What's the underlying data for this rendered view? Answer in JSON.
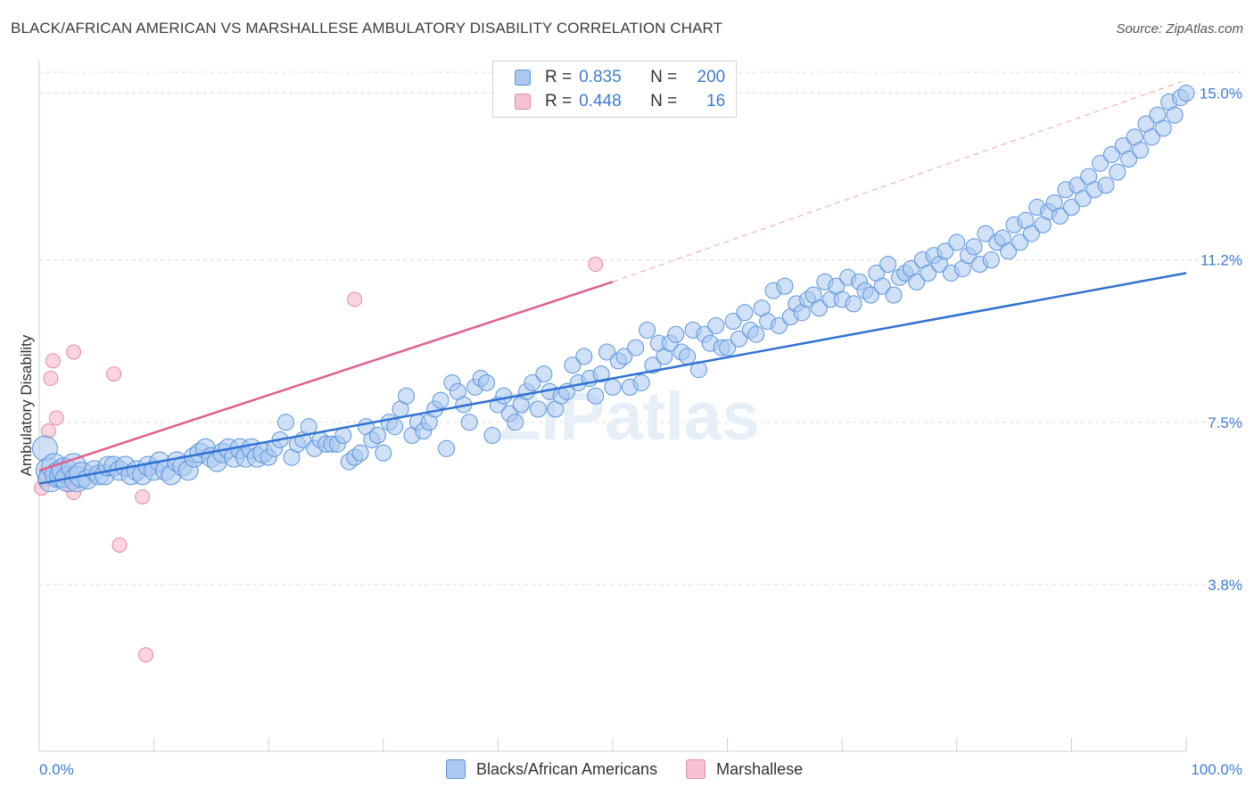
{
  "title": "BLACK/AFRICAN AMERICAN VS MARSHALLESE AMBULATORY DISABILITY CORRELATION CHART",
  "source": "Source: ZipAtlas.com",
  "watermark": "ZIPatlas",
  "legend": {
    "rows": [
      {
        "r_label": "R =",
        "r_value": "0.835",
        "n_label": "N =",
        "n_value": "200"
      },
      {
        "r_label": "R =",
        "r_value": "0.448",
        "n_label": "N =",
        "n_value": "16"
      }
    ]
  },
  "bottom_legend": [
    "Blacks/African Americans",
    "Marshallese"
  ],
  "colors": {
    "blue_fill": "#aac8f0",
    "blue_stroke": "#5b93dc",
    "blue_line": "#2f72d2",
    "pink_fill": "#f8c2d2",
    "pink_stroke": "#e58aa6",
    "pink_line": "#e0608a",
    "grid": "#dddddd",
    "axis_text": "#3d7bd6"
  },
  "chart_data": {
    "type": "scatter",
    "title": "BLACK/AFRICAN AMERICAN VS MARSHALLESE AMBULATORY DISABILITY CORRELATION CHART",
    "xlabel": "",
    "ylabel": "Ambulatory Disability",
    "xlim": [
      0,
      100
    ],
    "ylim": [
      0,
      15.6
    ],
    "x_tick_labels": [
      "0.0%",
      "100.0%"
    ],
    "y_ticks": [
      3.8,
      7.5,
      11.2,
      15.0
    ],
    "y_tick_labels": [
      "3.8%",
      "7.5%",
      "11.2%",
      "15.0%"
    ],
    "grid": true,
    "legend_position": "top-center",
    "series": [
      {
        "name": "Blacks/African Americans",
        "r": 0.835,
        "n": 200,
        "trend": {
          "x": [
            0,
            100
          ],
          "y": [
            6.1,
            10.9
          ]
        },
        "points": [
          [
            0.5,
            6.9
          ],
          [
            0.8,
            6.4
          ],
          [
            1,
            6.2
          ],
          [
            1.3,
            6.5
          ],
          [
            1.6,
            6.3
          ],
          [
            2,
            6.3
          ],
          [
            2.2,
            6.4
          ],
          [
            2.5,
            6.2
          ],
          [
            3,
            6.5
          ],
          [
            3.3,
            6.2
          ],
          [
            3.7,
            6.3
          ],
          [
            4.2,
            6.2
          ],
          [
            4.8,
            6.4
          ],
          [
            5.2,
            6.3
          ],
          [
            5.7,
            6.3
          ],
          [
            6,
            6.5
          ],
          [
            6.5,
            6.5
          ],
          [
            7,
            6.4
          ],
          [
            7.5,
            6.5
          ],
          [
            8,
            6.3
          ],
          [
            8.5,
            6.4
          ],
          [
            9,
            6.3
          ],
          [
            9.5,
            6.5
          ],
          [
            10,
            6.4
          ],
          [
            10.5,
            6.6
          ],
          [
            11,
            6.4
          ],
          [
            11.5,
            6.3
          ],
          [
            12,
            6.6
          ],
          [
            12.5,
            6.5
          ],
          [
            13,
            6.4
          ],
          [
            13.5,
            6.7
          ],
          [
            14,
            6.8
          ],
          [
            14.5,
            6.9
          ],
          [
            15,
            6.7
          ],
          [
            15.5,
            6.6
          ],
          [
            16,
            6.8
          ],
          [
            16.5,
            6.9
          ],
          [
            17,
            6.7
          ],
          [
            17.5,
            6.9
          ],
          [
            18,
            6.7
          ],
          [
            18.5,
            6.9
          ],
          [
            19,
            6.7
          ],
          [
            19.5,
            6.8
          ],
          [
            20,
            6.7
          ],
          [
            20.5,
            6.9
          ],
          [
            21,
            7.1
          ],
          [
            21.5,
            7.5
          ],
          [
            22,
            6.7
          ],
          [
            22.5,
            7.0
          ],
          [
            23,
            7.1
          ],
          [
            23.5,
            7.4
          ],
          [
            24,
            6.9
          ],
          [
            24.5,
            7.1
          ],
          [
            25,
            7.0
          ],
          [
            25.5,
            7.0
          ],
          [
            26,
            7.0
          ],
          [
            26.5,
            7.2
          ],
          [
            27,
            6.6
          ],
          [
            27.5,
            6.7
          ],
          [
            28,
            6.8
          ],
          [
            28.5,
            7.4
          ],
          [
            29,
            7.1
          ],
          [
            29.5,
            7.2
          ],
          [
            30,
            6.8
          ],
          [
            30.5,
            7.5
          ],
          [
            31,
            7.4
          ],
          [
            31.5,
            7.8
          ],
          [
            32,
            8.1
          ],
          [
            32.5,
            7.2
          ],
          [
            33,
            7.5
          ],
          [
            33.5,
            7.3
          ],
          [
            34,
            7.5
          ],
          [
            34.5,
            7.8
          ],
          [
            35,
            8.0
          ],
          [
            35.5,
            6.9
          ],
          [
            36,
            8.4
          ],
          [
            36.5,
            8.2
          ],
          [
            37,
            7.9
          ],
          [
            37.5,
            7.5
          ],
          [
            38,
            8.3
          ],
          [
            38.5,
            8.5
          ],
          [
            39,
            8.4
          ],
          [
            39.5,
            7.2
          ],
          [
            40,
            7.9
          ],
          [
            40.5,
            8.1
          ],
          [
            41,
            7.7
          ],
          [
            41.5,
            7.5
          ],
          [
            42,
            7.9
          ],
          [
            42.5,
            8.2
          ],
          [
            43,
            8.4
          ],
          [
            43.5,
            7.8
          ],
          [
            44,
            8.6
          ],
          [
            44.5,
            8.2
          ],
          [
            45,
            7.8
          ],
          [
            45.5,
            8.1
          ],
          [
            46,
            8.2
          ],
          [
            46.5,
            8.8
          ],
          [
            47,
            8.4
          ],
          [
            47.5,
            9.0
          ],
          [
            48,
            8.5
          ],
          [
            48.5,
            8.1
          ],
          [
            49,
            8.6
          ],
          [
            49.5,
            9.1
          ],
          [
            50,
            8.3
          ],
          [
            50.5,
            8.9
          ],
          [
            51,
            9.0
          ],
          [
            51.5,
            8.3
          ],
          [
            52,
            9.2
          ],
          [
            52.5,
            8.4
          ],
          [
            53,
            9.6
          ],
          [
            53.5,
            8.8
          ],
          [
            54,
            9.3
          ],
          [
            54.5,
            9.0
          ],
          [
            55,
            9.3
          ],
          [
            55.5,
            9.5
          ],
          [
            56,
            9.1
          ],
          [
            56.5,
            9.0
          ],
          [
            57,
            9.6
          ],
          [
            57.5,
            8.7
          ],
          [
            58,
            9.5
          ],
          [
            58.5,
            9.3
          ],
          [
            59,
            9.7
          ],
          [
            59.5,
            9.2
          ],
          [
            60,
            9.2
          ],
          [
            60.5,
            9.8
          ],
          [
            61,
            9.4
          ],
          [
            61.5,
            10.0
          ],
          [
            62,
            9.6
          ],
          [
            62.5,
            9.5
          ],
          [
            63,
            10.1
          ],
          [
            63.5,
            9.8
          ],
          [
            64,
            10.5
          ],
          [
            64.5,
            9.7
          ],
          [
            65,
            10.6
          ],
          [
            65.5,
            9.9
          ],
          [
            66,
            10.2
          ],
          [
            66.5,
            10.0
          ],
          [
            67,
            10.3
          ],
          [
            67.5,
            10.4
          ],
          [
            68,
            10.1
          ],
          [
            68.5,
            10.7
          ],
          [
            69,
            10.3
          ],
          [
            69.5,
            10.6
          ],
          [
            70,
            10.3
          ],
          [
            70.5,
            10.8
          ],
          [
            71,
            10.2
          ],
          [
            71.5,
            10.7
          ],
          [
            72,
            10.5
          ],
          [
            72.5,
            10.4
          ],
          [
            73,
            10.9
          ],
          [
            73.5,
            10.6
          ],
          [
            74,
            11.1
          ],
          [
            74.5,
            10.4
          ],
          [
            75,
            10.8
          ],
          [
            75.5,
            10.9
          ],
          [
            76,
            11.0
          ],
          [
            76.5,
            10.7
          ],
          [
            77,
            11.2
          ],
          [
            77.5,
            10.9
          ],
          [
            78,
            11.3
          ],
          [
            78.5,
            11.1
          ],
          [
            79,
            11.4
          ],
          [
            79.5,
            10.9
          ],
          [
            80,
            11.6
          ],
          [
            80.5,
            11.0
          ],
          [
            81,
            11.3
          ],
          [
            81.5,
            11.5
          ],
          [
            82,
            11.1
          ],
          [
            82.5,
            11.8
          ],
          [
            83,
            11.2
          ],
          [
            83.5,
            11.6
          ],
          [
            84,
            11.7
          ],
          [
            84.5,
            11.4
          ],
          [
            85,
            12.0
          ],
          [
            85.5,
            11.6
          ],
          [
            86,
            12.1
          ],
          [
            86.5,
            11.8
          ],
          [
            87,
            12.4
          ],
          [
            87.5,
            12.0
          ],
          [
            88,
            12.3
          ],
          [
            88.5,
            12.5
          ],
          [
            89,
            12.2
          ],
          [
            89.5,
            12.8
          ],
          [
            90,
            12.4
          ],
          [
            90.5,
            12.9
          ],
          [
            91,
            12.6
          ],
          [
            91.5,
            13.1
          ],
          [
            92,
            12.8
          ],
          [
            92.5,
            13.4
          ],
          [
            93,
            12.9
          ],
          [
            93.5,
            13.6
          ],
          [
            94,
            13.2
          ],
          [
            94.5,
            13.8
          ],
          [
            95,
            13.5
          ],
          [
            95.5,
            14.0
          ],
          [
            96,
            13.7
          ],
          [
            96.5,
            14.3
          ],
          [
            97,
            14.0
          ],
          [
            97.5,
            14.5
          ],
          [
            98,
            14.2
          ],
          [
            98.5,
            14.8
          ],
          [
            99,
            14.5
          ],
          [
            99.5,
            14.9
          ],
          [
            100,
            15.0
          ]
        ]
      },
      {
        "name": "Marshallese",
        "r": 0.448,
        "n": 16,
        "trend": {
          "x": [
            0,
            50
          ],
          "y": [
            6.4,
            10.7
          ]
        },
        "trend_extension": {
          "x": [
            50,
            100
          ],
          "y": [
            10.7,
            15.3
          ]
        },
        "points": [
          [
            0.2,
            6.0
          ],
          [
            0.5,
            6.2
          ],
          [
            0.8,
            7.3
          ],
          [
            1,
            8.5
          ],
          [
            1.2,
            8.9
          ],
          [
            1.5,
            7.6
          ],
          [
            2,
            6.3
          ],
          [
            2.5,
            6.1
          ],
          [
            3,
            9.1
          ],
          [
            3,
            5.9
          ],
          [
            6.5,
            8.6
          ],
          [
            7,
            4.7
          ],
          [
            9,
            5.8
          ],
          [
            9.3,
            2.2
          ],
          [
            27.5,
            10.3
          ],
          [
            48.5,
            11.1
          ]
        ]
      }
    ]
  }
}
